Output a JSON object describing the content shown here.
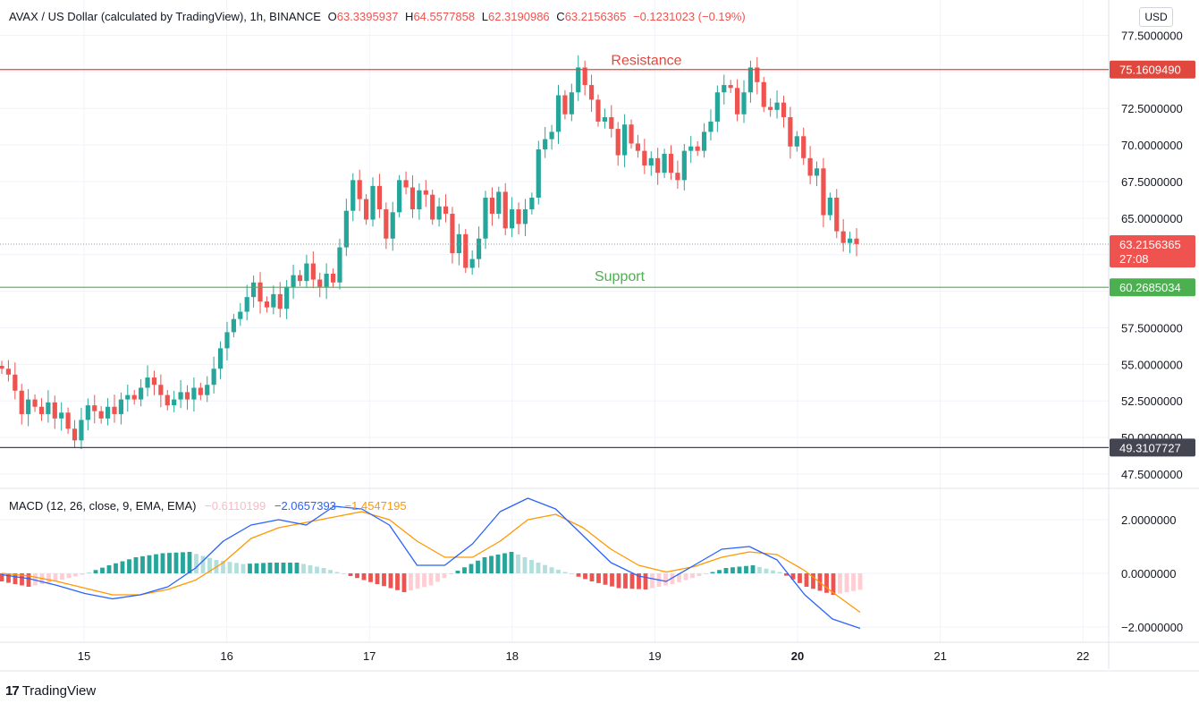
{
  "header": {
    "symbol": "AVAX / US Dollar (calculated by TradingView), 1h, BINANCE",
    "open_label": "O",
    "open": "63.3395937",
    "high_label": "H",
    "high": "64.5577858",
    "low_label": "L",
    "low": "62.3190986",
    "close_label": "C",
    "close": "63.2156365",
    "change": "−0.1231023 (−0.19%)"
  },
  "currency_button": "USD",
  "macd_header": {
    "title": "MACD (12, 26, close, 9, EMA, EMA)",
    "histogram": "−0.6110199",
    "macd": "−2.0657393",
    "signal": "−1.4547195"
  },
  "brand": {
    "logo": "17",
    "name": "TradingView"
  },
  "colors": {
    "up": "#26a69a",
    "down": "#ef5350",
    "resistance": "#e0483e",
    "support": "#4caf50",
    "floor": "#434651",
    "macd_line": "#2962ff",
    "signal_line": "#ff9800"
  },
  "annotations": {
    "resistance_label": "Resistance",
    "support_label": "Support",
    "resistance_value": "75.1609490",
    "support_value": "60.2685034",
    "floor_value": "49.3107727",
    "last_price": "63.2156365",
    "countdown": "27:08"
  },
  "chart_data": [
    {
      "type": "candlestick",
      "title": "AVAX / US Dollar (calculated by TradingView), 1h, BINANCE",
      "x_axis": {
        "ticks": [
          "15",
          "16",
          "17",
          "18",
          "19",
          "20",
          "21",
          "22"
        ],
        "range": [
          14.45,
          22.2
        ]
      },
      "y_axis": {
        "ticks": [
          "47.5000000",
          "50.0000000",
          "52.5000000",
          "55.0000000",
          "57.5000000",
          "60.0000000",
          "62.5000000",
          "65.0000000",
          "67.5000000",
          "70.0000000",
          "72.5000000",
          "75.0000000",
          "77.5000000"
        ],
        "range": [
          46.0,
          78.2
        ]
      },
      "horizontal_lines": [
        {
          "label": "Resistance",
          "value": 75.160949
        },
        {
          "label": "Support",
          "value": 60.2685034
        },
        {
          "label": "",
          "value": 49.3107727
        }
      ],
      "last_price": 63.2156365,
      "closes": [
        54.7,
        54.3,
        53.2,
        51.6,
        52.6,
        52.1,
        51.6,
        52.4,
        51.3,
        51.7,
        50.6,
        49.8,
        51.2,
        52.2,
        51.8,
        51.3,
        52.1,
        51.6,
        52.6,
        52.9,
        52.6,
        53.4,
        54.1,
        53.6,
        52.9,
        52.2,
        52.6,
        53.1,
        52.6,
        53.4,
        52.9,
        53.6,
        54.7,
        56.1,
        57.2,
        58.1,
        58.6,
        59.6,
        60.6,
        59.3,
        58.9,
        59.8,
        58.8,
        60.3,
        61.1,
        60.7,
        61.9,
        60.8,
        60.3,
        61.2,
        60.6,
        63.0,
        65.5,
        67.6,
        66.3,
        64.9,
        67.2,
        65.6,
        63.6,
        65.4,
        67.6,
        67.1,
        65.6,
        66.9,
        66.6,
        64.9,
        65.8,
        65.3,
        62.6,
        63.9,
        61.6,
        62.2,
        63.6,
        66.4,
        65.3,
        66.8,
        64.3,
        65.6,
        64.6,
        65.6,
        66.4,
        69.7,
        70.4,
        70.9,
        73.4,
        72.1,
        73.6,
        75.3,
        74.1,
        73.1,
        71.6,
        71.9,
        71.1,
        69.3,
        71.4,
        70.1,
        69.6,
        68.6,
        69.1,
        68.1,
        69.4,
        68.1,
        67.6,
        69.6,
        69.9,
        69.6,
        70.9,
        71.6,
        73.6,
        74.1,
        73.9,
        72.1,
        73.6,
        75.3,
        74.3,
        72.6,
        72.4,
        72.9,
        71.9,
        69.9,
        70.6,
        69.1,
        67.9,
        68.4,
        65.2,
        66.4,
        64.1,
        63.3,
        63.6,
        63.22
      ],
      "macd": {
        "ticks": [
          "2.0000000",
          "0.0000000",
          "−2.0000000"
        ],
        "range": [
          -2.3,
          3.2
        ],
        "series": [
          {
            "name": "MACD",
            "values": [
              -0.05,
              -0.2,
              -0.45,
              -0.75,
              -0.95,
              -0.8,
              -0.5,
              0.2,
              1.2,
              1.8,
              2.0,
              1.8,
              2.5,
              2.4,
              1.8,
              0.3,
              0.3,
              1.1,
              2.3,
              2.8,
              2.4,
              1.4,
              0.4,
              -0.1,
              -0.3,
              0.3,
              0.9,
              1.0,
              0.5,
              -0.8,
              -1.7,
              -2.05
            ]
          },
          {
            "name": "Signal",
            "values": [
              0.0,
              -0.1,
              -0.3,
              -0.55,
              -0.8,
              -0.8,
              -0.6,
              -0.25,
              0.4,
              1.3,
              1.7,
              1.9,
              2.1,
              2.3,
              2.0,
              1.2,
              0.6,
              0.6,
              1.2,
              2.0,
              2.2,
              1.7,
              0.9,
              0.3,
              0.05,
              0.25,
              0.6,
              0.8,
              0.7,
              0.1,
              -0.7,
              -1.45
            ]
          }
        ],
        "histogram": [
          -0.3,
          -0.5,
          -0.3,
          -0.05,
          0.3,
          0.6,
          0.75,
          0.8,
          0.5,
          0.35,
          0.4,
          0.4,
          0.2,
          -0.1,
          -0.4,
          -0.7,
          -0.45,
          0.1,
          0.6,
          0.8,
          0.4,
          0.05,
          -0.3,
          -0.55,
          -0.6,
          -0.4,
          -0.1,
          0.2,
          0.3,
          0.05,
          -0.5,
          -0.8,
          -0.61
        ]
      }
    }
  ]
}
